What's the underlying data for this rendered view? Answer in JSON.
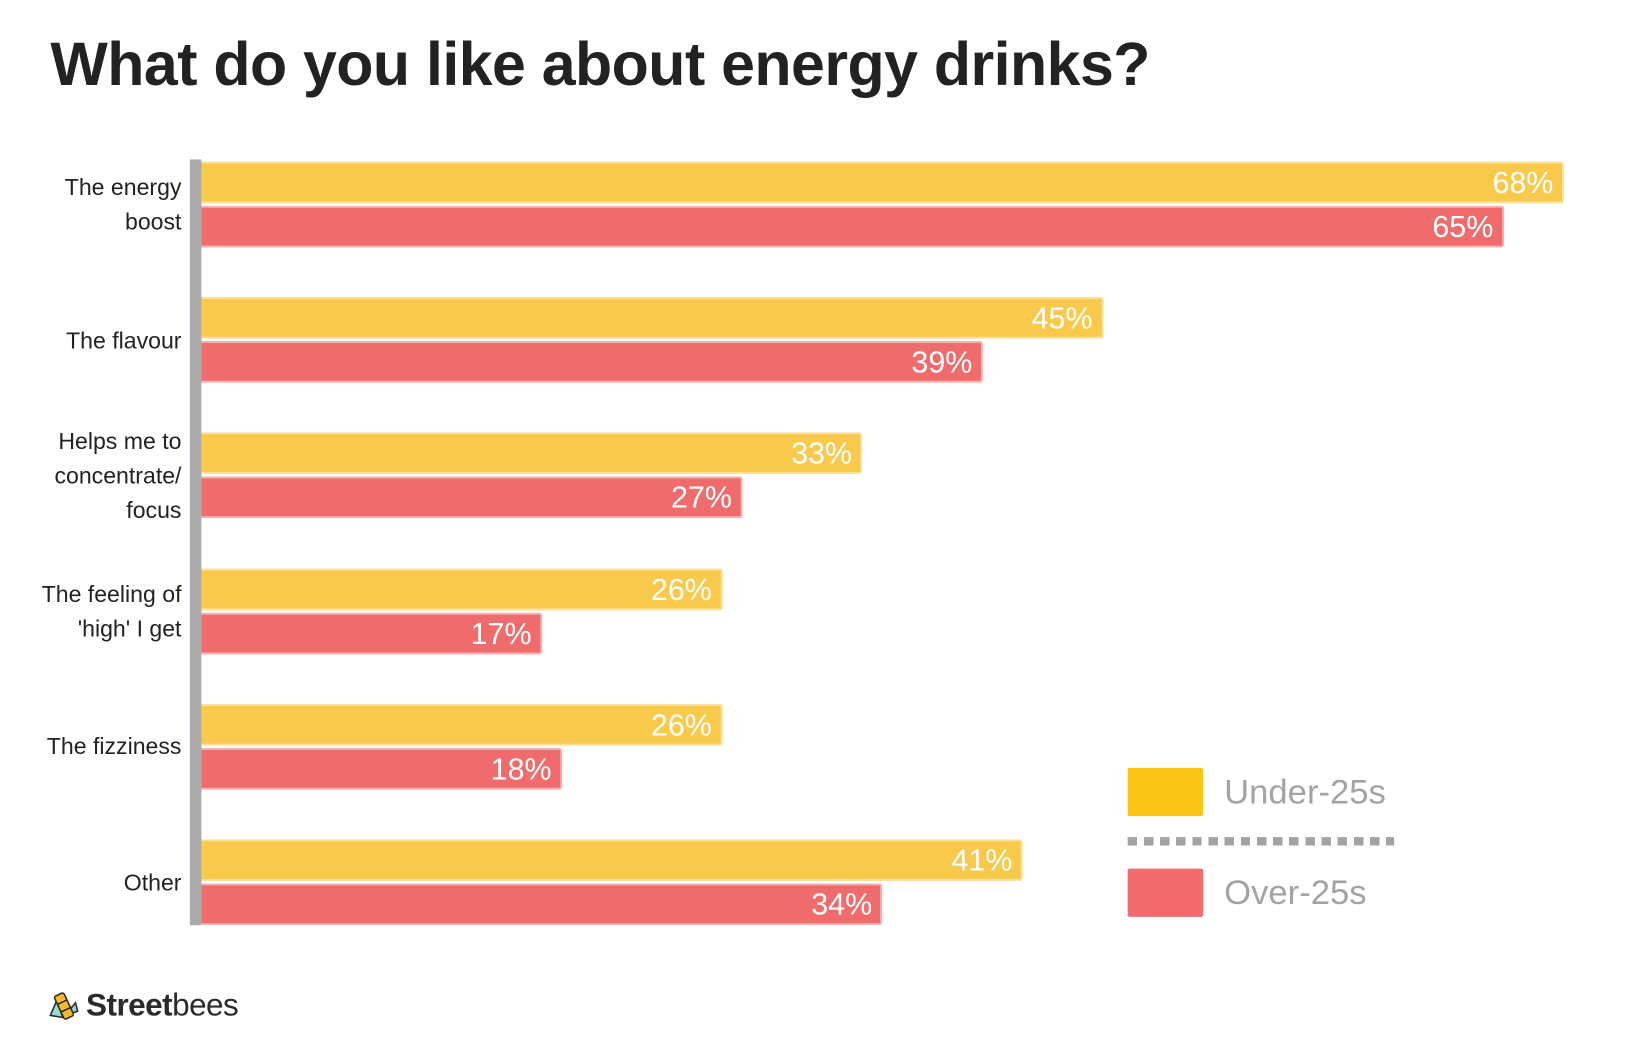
{
  "title": "What do you like about energy drinks?",
  "chart_data": {
    "type": "bar",
    "orientation": "horizontal",
    "title": "What do you like about energy drinks?",
    "categories": [
      "The energy boost",
      "The flavour",
      "Helps me to concentrate/ focus",
      "The feeling of 'high' I get",
      "The fizziness",
      "Other"
    ],
    "category_lines": [
      [
        "The energy",
        "boost"
      ],
      [
        "The flavour"
      ],
      [
        "Helps me to",
        "concentrate/",
        "focus"
      ],
      [
        "The feeling of",
        "'high' I get"
      ],
      [
        "The fizziness"
      ],
      [
        "Other"
      ]
    ],
    "series": [
      {
        "name": "Under-25s",
        "color": "#f9c94b",
        "values": [
          68,
          45,
          33,
          26,
          26,
          41
        ],
        "labels": [
          "68%",
          "45%",
          "33%",
          "26%",
          "26%",
          "41%"
        ]
      },
      {
        "name": "Over-25s",
        "color": "#f06b6b",
        "values": [
          65,
          39,
          27,
          17,
          18,
          34
        ],
        "labels": [
          "65%",
          "39%",
          "27%",
          "17%",
          "18%",
          "34%"
        ]
      }
    ],
    "unit": "%",
    "grid": false,
    "legend_position": "bottom-right"
  },
  "legend": {
    "items": [
      {
        "label": "Under-25s",
        "color": "#fbc513"
      },
      {
        "label": "Over-25s",
        "color": "#f26b6d"
      }
    ]
  },
  "logo": {
    "text_bold": "Street",
    "text_light": "bees"
  }
}
